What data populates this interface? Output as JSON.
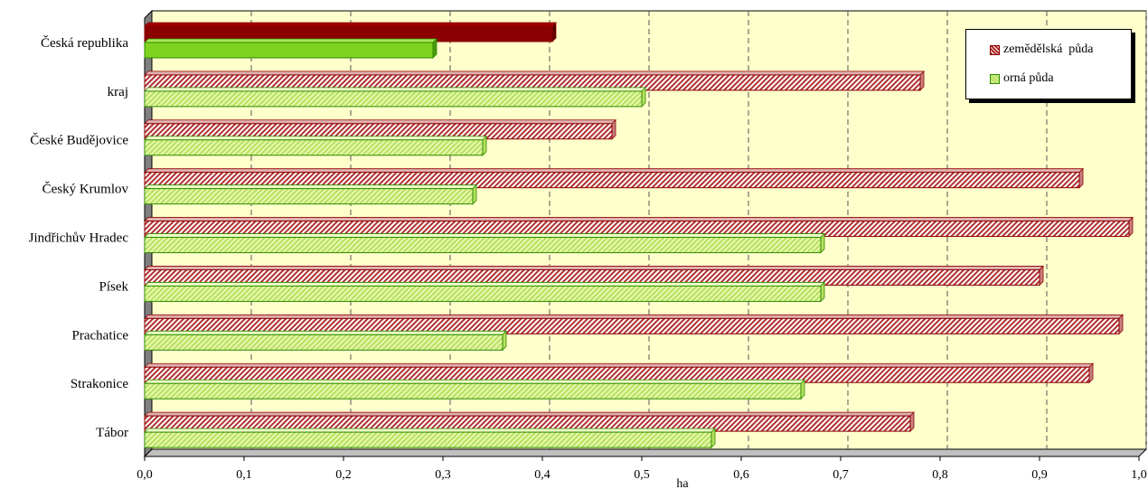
{
  "chart_data": {
    "type": "bar",
    "orientation": "horizontal",
    "categories": [
      "Česká republika",
      "kraj",
      "České Budějovice",
      "Český Krumlov",
      "Jindřichův Hradec",
      "Písek",
      "Prachatice",
      "Strakonice",
      "Tábor"
    ],
    "series": [
      {
        "name": "zemědělská  půda",
        "values": [
          0.41,
          0.78,
          0.47,
          0.94,
          0.99,
          0.9,
          0.98,
          0.95,
          0.77
        ]
      },
      {
        "name": "orná půda",
        "values": [
          0.29,
          0.5,
          0.34,
          0.33,
          0.68,
          0.68,
          0.36,
          0.66,
          0.57
        ]
      }
    ],
    "xlabel": "ha",
    "xlim": [
      0,
      1
    ],
    "xticks": [
      "0,0",
      "0,1",
      "0,2",
      "0,3",
      "0,4",
      "0,5",
      "0,6",
      "0,7",
      "0,8",
      "0,9",
      "1,0"
    ],
    "grid": "vertical dashed",
    "legend_position": "top-right",
    "colors": {
      "zemedelska": "#8B0000",
      "zemedelska_light": "#c98080",
      "orna": "#7ed321",
      "orna_light": "#d6f29a",
      "plot_bg": "#ffffcc",
      "wall": "#808080"
    }
  }
}
